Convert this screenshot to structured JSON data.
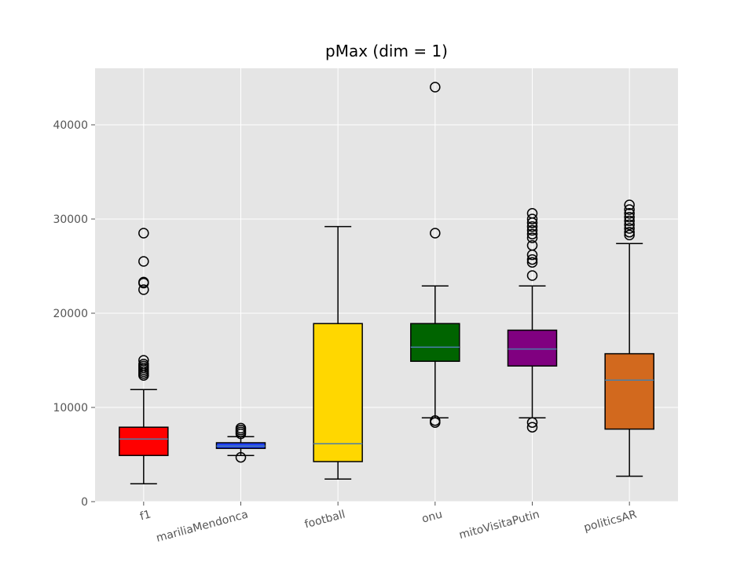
{
  "chart_data": {
    "type": "box",
    "title": "pMax (dim = 1)",
    "xlabel": "",
    "ylabel": "",
    "ylim": [
      0,
      46000
    ],
    "yticks": [
      0,
      10000,
      20000,
      30000,
      40000
    ],
    "ytick_labels": [
      "0",
      "10000",
      "20000",
      "30000",
      "40000"
    ],
    "grid": true,
    "style": "ggplot",
    "categories": [
      "f1",
      "mariliaMendonca",
      "football",
      "onu",
      "mitoVisitaPutin",
      "politicsAR"
    ],
    "series": [
      {
        "name": "f1",
        "color": "#ff0000",
        "whisker_low": 1900,
        "q1": 4900,
        "median": 6650,
        "q3": 7900,
        "whisker_high": 11900,
        "outliers": [
          13400,
          13600,
          13800,
          14000,
          14200,
          14400,
          14600,
          15000,
          22500,
          23200,
          23300,
          25500,
          28500
        ]
      },
      {
        "name": "mariliaMendonca",
        "color": "#1f3fff",
        "whisker_low": 4900,
        "q1": 5650,
        "median": 5900,
        "q3": 6250,
        "whisker_high": 6900,
        "outliers": [
          4700,
          7200,
          7400,
          7600,
          7800
        ]
      },
      {
        "name": "football",
        "color": "#ffd700",
        "whisker_low": 2400,
        "q1": 4250,
        "median": 6150,
        "q3": 18900,
        "whisker_high": 29200,
        "outliers": []
      },
      {
        "name": "onu",
        "color": "#006400",
        "whisker_low": 8900,
        "q1": 14900,
        "median": 16400,
        "q3": 18900,
        "whisker_high": 22900,
        "outliers": [
          8400,
          8600,
          28500,
          44000
        ]
      },
      {
        "name": "mitoVisitaPutin",
        "color": "#800080",
        "whisker_low": 8900,
        "q1": 14400,
        "median": 16200,
        "q3": 18200,
        "whisker_high": 22900,
        "outliers": [
          7900,
          8400,
          24000,
          25400,
          25700,
          26200,
          27200,
          28000,
          28400,
          28800,
          29200,
          29600,
          30000,
          30600
        ]
      },
      {
        "name": "politicsAR",
        "color": "#d2691e",
        "whisker_low": 2700,
        "q1": 7700,
        "median": 12900,
        "q3": 15700,
        "whisker_high": 27400,
        "outliers": [
          28300,
          28600,
          29000,
          29400,
          29800,
          30200,
          30600,
          31000,
          31500
        ]
      }
    ],
    "median_color": "#4a7ea8"
  }
}
